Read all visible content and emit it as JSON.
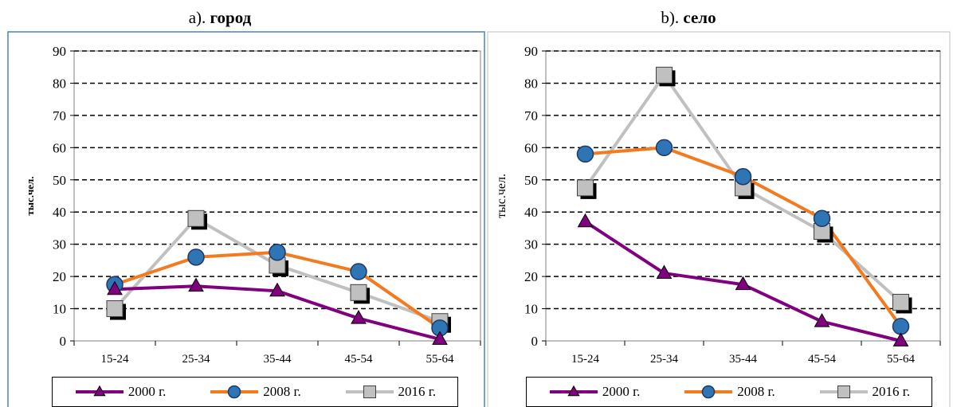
{
  "chart_data": [
    {
      "type": "line",
      "title_prefix": "a). ",
      "title": "город",
      "ylabel": "тыс.чел.",
      "categories": [
        "15-24",
        "25-34",
        "35-44",
        "45-54",
        "55-64"
      ],
      "ylim": [
        0,
        90
      ],
      "yticks": [
        "0",
        "10",
        "20",
        "30",
        "40",
        "50",
        "60",
        "70",
        "80",
        "90"
      ],
      "grid": "dashed-horizontal",
      "legend": "bottom",
      "series": [
        {
          "name": "2000 г.",
          "values": [
            16,
            17,
            15.5,
            7,
            0.5
          ],
          "color": "#800080",
          "marker": "triangle"
        },
        {
          "name": "2008 г.",
          "values": [
            17.5,
            26,
            27.5,
            21.5,
            4
          ],
          "color": "#f47a20",
          "marker": "circle"
        },
        {
          "name": "2016 г.",
          "values": [
            10,
            38,
            23.5,
            15,
            6
          ],
          "color": "#c0c0c0",
          "marker": "square"
        }
      ]
    },
    {
      "type": "line",
      "title_prefix": "b). ",
      "title": "село",
      "ylabel": "тыс.чел.",
      "categories": [
        "15-24",
        "25-34",
        "35-44",
        "45-54",
        "55-64"
      ],
      "ylim": [
        0,
        90
      ],
      "yticks": [
        "0",
        "10",
        "20",
        "30",
        "40",
        "50",
        "60",
        "70",
        "80",
        "90"
      ],
      "grid": "dashed-horizontal",
      "legend": "bottom",
      "series": [
        {
          "name": "2000 г.",
          "values": [
            37,
            21,
            17.5,
            6,
            0
          ],
          "color": "#800080",
          "marker": "triangle"
        },
        {
          "name": "2008 г.",
          "values": [
            58,
            60,
            51,
            38,
            4.5
          ],
          "color": "#f47a20",
          "marker": "circle"
        },
        {
          "name": "2016 г.",
          "values": [
            47.5,
            82.5,
            47.5,
            34,
            12
          ],
          "color": "#c0c0c0",
          "marker": "square"
        }
      ]
    }
  ]
}
